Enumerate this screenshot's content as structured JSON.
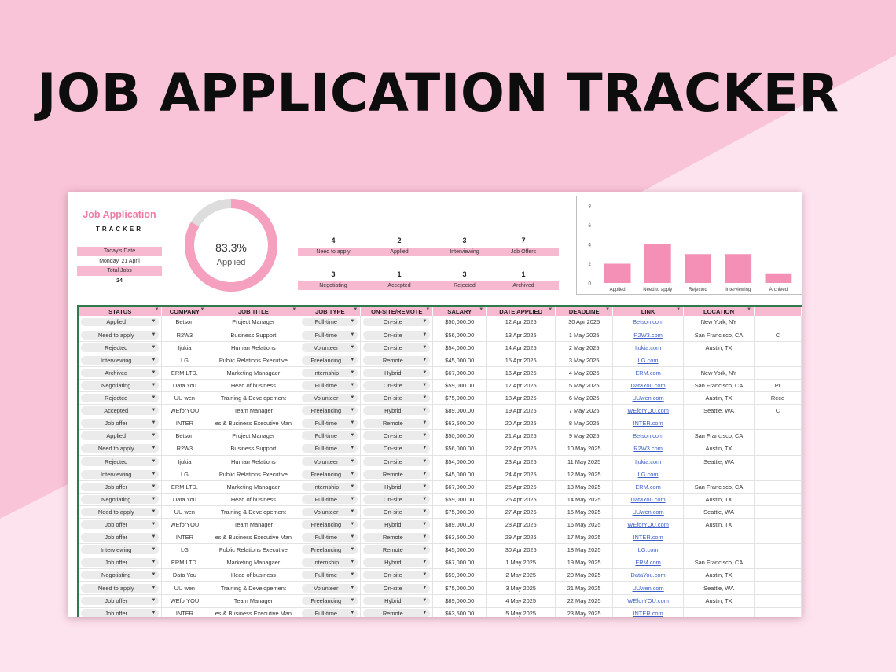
{
  "hero": {
    "title": "JOB APPLICATION TRACKER"
  },
  "colors": {
    "background": "#f9c4d8",
    "background_light": "#fde3ee",
    "accent": "#f7b9cf",
    "donut": "#f4a0be",
    "bars": "#f48fb6",
    "link": "#3b5fc9"
  },
  "brand": {
    "main": "Job Application",
    "sub": "TRACKER"
  },
  "side": {
    "todays_date_label": "Today's Date",
    "todays_date_value": "Monday, 21 April",
    "total_jobs_label": "Total Jobs",
    "total_jobs_value": "24"
  },
  "donut": {
    "percent_label": "83.3%",
    "percent_value": 83.3,
    "label": "Applied"
  },
  "stats": [
    {
      "value": "4",
      "label": "Need to apply"
    },
    {
      "value": "2",
      "label": "Applied"
    },
    {
      "value": "3",
      "label": "Interviewing"
    },
    {
      "value": "7",
      "label": "Job Offers"
    },
    {
      "value": "3",
      "label": "Negotiating"
    },
    {
      "value": "1",
      "label": "Accepted"
    },
    {
      "value": "3",
      "label": "Rejected"
    },
    {
      "value": "1",
      "label": "Archived"
    }
  ],
  "chart_data": {
    "type": "bar",
    "categories": [
      "Applied",
      "Need to apply",
      "Rejected",
      "Interviewing",
      "Archived"
    ],
    "values": [
      2,
      4,
      3,
      3,
      1
    ],
    "ylim": [
      0,
      8
    ],
    "yticks": [
      "0",
      "2",
      "4",
      "6",
      "8"
    ],
    "grid": false,
    "title": "",
    "xlabel": "",
    "ylabel": ""
  },
  "table": {
    "headers": [
      "STATUS",
      "COMPANY",
      "JOB TITLE",
      "JOB TYPE",
      "ON-SITE/REMOTE",
      "SALARY",
      "DATE APPLIED",
      "DEADLINE",
      "LINK",
      "LOCATION",
      ""
    ],
    "rows": [
      [
        "Applied",
        "Betson",
        "Project Manager",
        "Full-time",
        "On-site",
        "$50,000.00",
        "12 Apr 2025",
        "30 Apr 2025",
        "Betson.com",
        "New York, NY",
        ""
      ],
      [
        "Need to apply",
        "R2W3",
        "Business Support",
        "Full-time",
        "On-site",
        "$56,000.00",
        "13 Apr 2025",
        "1 May 2025",
        "R2W3.com",
        "San Francisco, CA",
        "C"
      ],
      [
        "Rejected",
        "Ijukia",
        "Human Relations",
        "Volunteer",
        "On-site",
        "$54,000.00",
        "14 Apr 2025",
        "2 May 2025",
        "Ijukia.com",
        "Austin, TX",
        ""
      ],
      [
        "Interviewing",
        "LG",
        "Public Relations Executive",
        "Freelancing",
        "Remote",
        "$45,000.00",
        "15 Apr 2025",
        "3 May 2025",
        "LG.com",
        "",
        ""
      ],
      [
        "Archived",
        "ERM LTD.",
        "Marketing Managaer",
        "Internship",
        "Hybrid",
        "$67,000.00",
        "16 Apr 2025",
        "4 May 2025",
        "ERM.com",
        "New York, NY",
        ""
      ],
      [
        "Negotiating",
        "Data You",
        "Head of business",
        "Full-time",
        "On-site",
        "$59,000.00",
        "17 Apr 2025",
        "5 May 2025",
        "DataYou.com",
        "San Francisco, CA",
        "Pr"
      ],
      [
        "Rejected",
        "UU wen",
        "Training & Developement",
        "Volunteer",
        "On-site",
        "$75,000.00",
        "18 Apr 2025",
        "6 May 2025",
        "UUwen.com",
        "Austin, TX",
        "Rece"
      ],
      [
        "Accepted",
        "WEforYOU",
        "Team Manager",
        "Freelancing",
        "Hybrid",
        "$89,000.00",
        "19 Apr 2025",
        "7 May 2025",
        "WEforYOU.com",
        "Seattle, WA",
        "C"
      ],
      [
        "Job offer",
        "INTER",
        "es & Business Executive Man",
        "Full-time",
        "Remote",
        "$63,500.00",
        "20 Apr 2025",
        "8 May 2025",
        "INTER.com",
        "",
        ""
      ],
      [
        "Applied",
        "Betson",
        "Project Manager",
        "Full-time",
        "On-site",
        "$50,000.00",
        "21 Apr 2025",
        "9 May 2025",
        "Betson.com",
        "San Francisco, CA",
        ""
      ],
      [
        "Need to apply",
        "R2W3",
        "Business Support",
        "Full-time",
        "On-site",
        "$56,000.00",
        "22 Apr 2025",
        "10 May 2025",
        "R2W3.com",
        "Austin, TX",
        ""
      ],
      [
        "Rejected",
        "Ijukia",
        "Human Relations",
        "Volunteer",
        "On-site",
        "$54,000.00",
        "23 Apr 2025",
        "11 May 2025",
        "Ijukia.com",
        "Seattle, WA",
        ""
      ],
      [
        "Interviewing",
        "LG",
        "Public Relations Executive",
        "Freelancing",
        "Remote",
        "$45,000.00",
        "24 Apr 2025",
        "12 May 2025",
        "LG.com",
        "",
        ""
      ],
      [
        "Job offer",
        "ERM LTD.",
        "Marketing Managaer",
        "Internship",
        "Hybrid",
        "$67,000.00",
        "25 Apr 2025",
        "13 May 2025",
        "ERM.com",
        "San Francisco, CA",
        ""
      ],
      [
        "Negotiating",
        "Data You",
        "Head of business",
        "Full-time",
        "On-site",
        "$59,000.00",
        "26 Apr 2025",
        "14 May 2025",
        "DataYou.com",
        "Austin, TX",
        ""
      ],
      [
        "Need to apply",
        "UU wen",
        "Training & Developement",
        "Volunteer",
        "On-site",
        "$75,000.00",
        "27 Apr 2025",
        "15 May 2025",
        "UUwen.com",
        "Seattle, WA",
        ""
      ],
      [
        "Job offer",
        "WEforYOU",
        "Team Manager",
        "Freelancing",
        "Hybrid",
        "$89,000.00",
        "28 Apr 2025",
        "16 May 2025",
        "WEforYOU.com",
        "Austin, TX",
        ""
      ],
      [
        "Job offer",
        "INTER",
        "es & Business Executive Man",
        "Full-time",
        "Remote",
        "$63,500.00",
        "29 Apr 2025",
        "17 May 2025",
        "INTER.com",
        "",
        ""
      ],
      [
        "Interviewing",
        "LG",
        "Public Relations Executive",
        "Freelancing",
        "Remote",
        "$45,000.00",
        "30 Apr 2025",
        "18 May 2025",
        "LG.com",
        "",
        ""
      ],
      [
        "Job offer",
        "ERM LTD.",
        "Marketing Managaer",
        "Internship",
        "Hybrid",
        "$67,000.00",
        "1 May 2025",
        "19 May 2025",
        "ERM.com",
        "San Francisco, CA",
        ""
      ],
      [
        "Negotiating",
        "Data You",
        "Head of business",
        "Full-time",
        "On-site",
        "$59,000.00",
        "2 May 2025",
        "20 May 2025",
        "DataYou.com",
        "Austin, TX",
        ""
      ],
      [
        "Need to apply",
        "UU wen",
        "Training & Developement",
        "Volunteer",
        "On-site",
        "$75,000.00",
        "3 May 2025",
        "21 May 2025",
        "UUwen.com",
        "Seattle, WA",
        ""
      ],
      [
        "Job offer",
        "WEforYOU",
        "Team Manager",
        "Freelancing",
        "Hybrid",
        "$89,000.00",
        "4 May 2025",
        "22 May 2025",
        "WEforYOU.com",
        "Austin, TX",
        ""
      ],
      [
        "Job offer",
        "INTER",
        "es & Business Executive Man",
        "Full-time",
        "Remote",
        "$63,500.00",
        "5 May 2025",
        "23 May 2025",
        "INTER.com",
        "",
        ""
      ]
    ]
  }
}
